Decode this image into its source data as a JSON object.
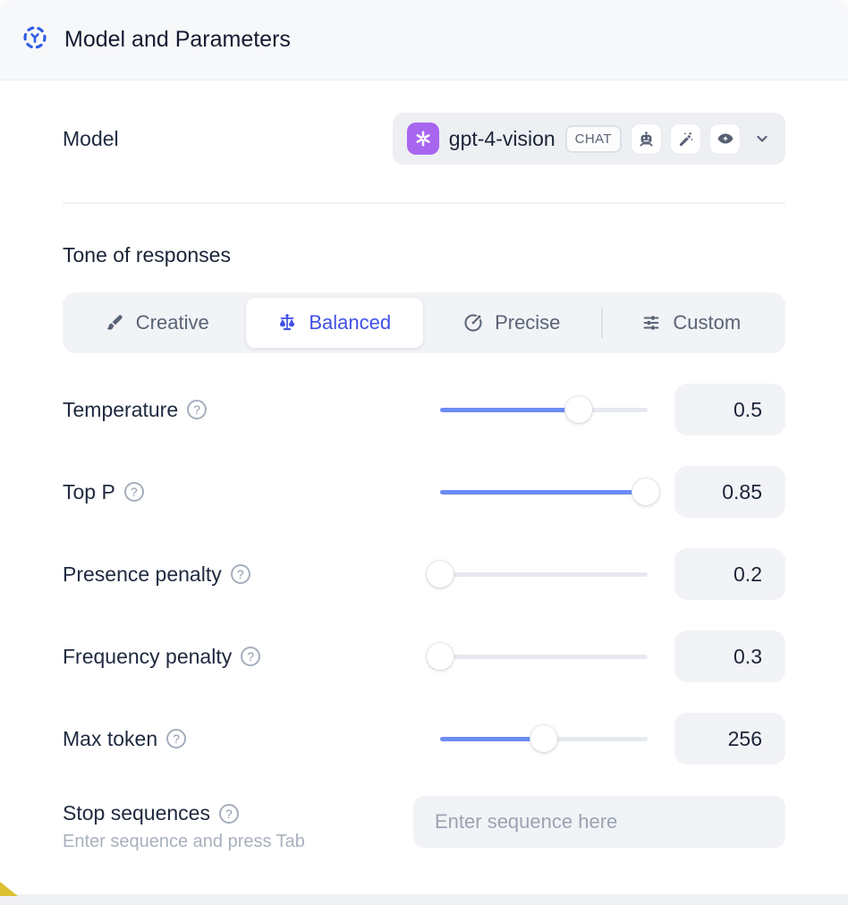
{
  "header": {
    "title": "Model and Parameters"
  },
  "model_row": {
    "label": "Model",
    "selected_model": "gpt-4-vision",
    "type_badge": "CHAT"
  },
  "tone": {
    "heading": "Tone of responses",
    "options": [
      {
        "label": "Creative",
        "icon": "paintbrush-icon",
        "selected": false
      },
      {
        "label": "Balanced",
        "icon": "balance-scale-icon",
        "selected": true
      },
      {
        "label": "Precise",
        "icon": "target-icon",
        "selected": false
      },
      {
        "label": "Custom",
        "icon": "sliders-icon",
        "selected": false
      }
    ]
  },
  "parameters": [
    {
      "label": "Temperature",
      "value": "0.5",
      "slider_percent": 67
    },
    {
      "label": "Top P",
      "value": "0.85",
      "slider_percent": 99
    },
    {
      "label": "Presence penalty",
      "value": "0.2",
      "slider_percent": 0
    },
    {
      "label": "Frequency penalty",
      "value": "0.3",
      "slider_percent": 0
    },
    {
      "label": "Max token",
      "value": "256",
      "slider_percent": 50
    }
  ],
  "stop_sequences": {
    "label": "Stop sequences",
    "hint": "Enter sequence and press Tab",
    "placeholder": "Enter sequence here"
  },
  "icons": {
    "help_glyph": "?"
  },
  "colors": {
    "accent_blue": "#2F5CE6",
    "selected_tone_blue": "#4050E6",
    "slider_fill_blue": "#6C8CF4",
    "model_logo_purple": "#A865F0",
    "corner_yellow": "#DCC133"
  }
}
